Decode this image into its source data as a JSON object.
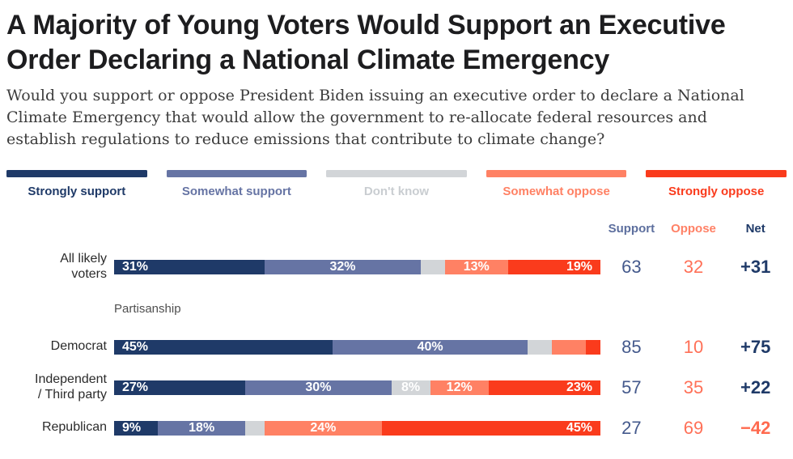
{
  "header": {
    "title": "A Majority of Young Voters Would Support an Executive Order Declaring a National Climate Emergency",
    "question": "Would you support or oppose President Biden issuing an executive order to declare a National Climate Emergency that would allow the government to re-allocate federal resources and establish regulations to reduce emissions that contribute to climate change?"
  },
  "chart_data": {
    "type": "bar",
    "variant": "horizontal-stacked-100-percent",
    "title": "A Majority of Young Voters Would Support an Executive Order Declaring a National Climate Emergency",
    "subtitle": "Would you support or oppose President Biden issuing an executive order to declare a National Climate Emergency that would allow the government to re-allocate federal resources and establish regulations to reduce emissions that contribute to climate change?",
    "legend_position": "top",
    "legend": [
      {
        "label": "Strongly support",
        "color": "#1f3a68"
      },
      {
        "label": "Somewhat support",
        "color": "#6674a4"
      },
      {
        "label": "Don't know",
        "color": "#d2d5d8"
      },
      {
        "label": "Somewhat oppose",
        "color": "#ff8164"
      },
      {
        "label": "Strongly oppose",
        "color": "#fa3b1c"
      }
    ],
    "columns": [
      "Support",
      "Oppose",
      "Net"
    ],
    "section_label": "Partisanship",
    "rows": [
      {
        "label": "All likely\nvoters",
        "segments": [
          31,
          32,
          5,
          13,
          19
        ],
        "segment_labels": [
          "31%",
          "32%",
          "",
          "13%",
          "19%"
        ],
        "support": "63",
        "oppose": "32",
        "net": "+31",
        "net_color": "#1f3a68"
      },
      {
        "label": "Democrat",
        "segments": [
          45,
          40,
          5,
          7,
          3
        ],
        "segment_labels": [
          "45%",
          "40%",
          "",
          "",
          ""
        ],
        "support": "85",
        "oppose": "10",
        "net": "+75",
        "net_color": "#1f3a68"
      },
      {
        "label": "Independent\n/ Third party",
        "segments": [
          27,
          30,
          8,
          12,
          23
        ],
        "segment_labels": [
          "27%",
          "30%",
          "8%",
          "12%",
          "23%"
        ],
        "support": "57",
        "oppose": "35",
        "net": "+22",
        "net_color": "#1f3a68"
      },
      {
        "label": "Republican",
        "segments": [
          9,
          18,
          4,
          24,
          45
        ],
        "segment_labels": [
          "9%",
          "18%",
          "",
          "24%",
          "45%"
        ],
        "support": "27",
        "oppose": "69",
        "net": "−42",
        "net_color": "#ff6a4f"
      }
    ],
    "value_colors": {
      "support_text": "#44598c",
      "oppose_text": "#ff7057",
      "net_positive": "#1f3a68",
      "net_negative": "#ff6a4f"
    }
  }
}
